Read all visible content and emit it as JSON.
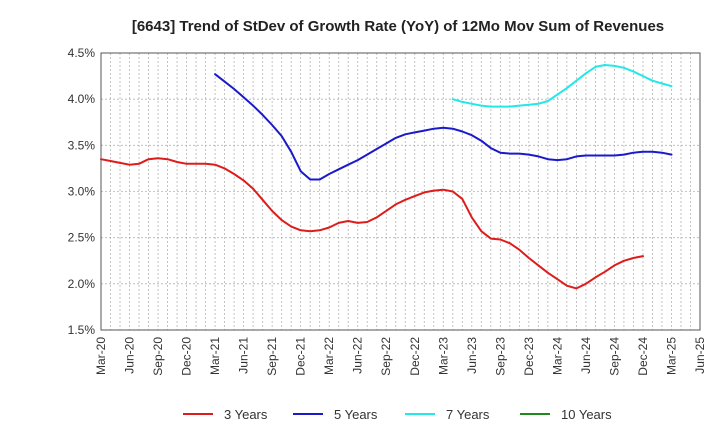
{
  "chart_data": {
    "type": "line",
    "title": "[6643]  Trend of StDev of Growth Rate (YoY) of 12Mo Mov Sum of Revenues",
    "xlabel": "",
    "ylabel": "",
    "ylim": [
      1.5,
      4.5
    ],
    "y_ticks": [
      "1.5%",
      "2.0%",
      "2.5%",
      "3.0%",
      "3.5%",
      "4.0%",
      "4.5%"
    ],
    "x_ticks": [
      "Mar-20",
      "Jun-20",
      "Sep-20",
      "Dec-20",
      "Mar-21",
      "Jun-21",
      "Sep-21",
      "Dec-21",
      "Mar-22",
      "Jun-22",
      "Sep-22",
      "Dec-22",
      "Mar-23",
      "Jun-23",
      "Sep-23",
      "Dec-23",
      "Mar-24",
      "Jun-24",
      "Sep-24",
      "Dec-24",
      "Mar-25",
      "Jun-25"
    ],
    "x_index_range": [
      0,
      63
    ],
    "grid": true,
    "legend": "bottom",
    "series": [
      {
        "name": "3 Years",
        "color": "#dd1c1c",
        "start_index": 0,
        "values": [
          3.35,
          3.33,
          3.31,
          3.29,
          3.3,
          3.35,
          3.36,
          3.35,
          3.32,
          3.3,
          3.3,
          3.3,
          3.29,
          3.25,
          3.19,
          3.12,
          3.03,
          2.91,
          2.79,
          2.69,
          2.62,
          2.58,
          2.57,
          2.58,
          2.61,
          2.66,
          2.68,
          2.66,
          2.67,
          2.72,
          2.79,
          2.86,
          2.91,
          2.95,
          2.99,
          3.01,
          3.02,
          3.0,
          2.92,
          2.72,
          2.57,
          2.49,
          2.48,
          2.44,
          2.37,
          2.28,
          2.2,
          2.12,
          2.05,
          1.98,
          1.95,
          2.0,
          2.07,
          2.13,
          2.2,
          2.25,
          2.28,
          2.3
        ]
      },
      {
        "name": "5 Years",
        "color": "#1a1acc",
        "start_index": 12,
        "values": [
          4.27,
          4.19,
          4.11,
          4.02,
          3.93,
          3.83,
          3.72,
          3.6,
          3.43,
          3.22,
          3.13,
          3.13,
          3.19,
          3.24,
          3.29,
          3.34,
          3.4,
          3.46,
          3.52,
          3.58,
          3.62,
          3.64,
          3.66,
          3.68,
          3.69,
          3.68,
          3.65,
          3.61,
          3.55,
          3.47,
          3.42,
          3.41,
          3.41,
          3.4,
          3.38,
          3.35,
          3.34,
          3.35,
          3.38,
          3.39,
          3.39,
          3.39,
          3.39,
          3.4,
          3.42,
          3.43,
          3.43,
          3.42,
          3.4
        ]
      },
      {
        "name": "7 Years",
        "color": "#22e8e8",
        "start_index": 37,
        "values": [
          4.0,
          3.97,
          3.95,
          3.93,
          3.92,
          3.92,
          3.92,
          3.93,
          3.94,
          3.95,
          3.98,
          4.05,
          4.12,
          4.2,
          4.28,
          4.35,
          4.37,
          4.36,
          4.34,
          4.3,
          4.25,
          4.2,
          4.17,
          4.14
        ]
      },
      {
        "name": "10 Years",
        "color": "#1e8a1e",
        "start_index": 0,
        "values": []
      }
    ]
  }
}
